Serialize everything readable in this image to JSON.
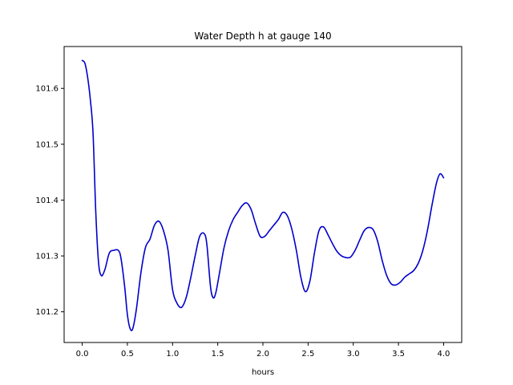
{
  "chart_data": {
    "type": "line",
    "title": "Water Depth h at gauge 140",
    "xlabel": "hours",
    "ylabel": "",
    "xlim": [
      -0.2,
      4.2
    ],
    "ylim": [
      101.145,
      101.675
    ],
    "xticks": [
      0.0,
      0.5,
      1.0,
      1.5,
      2.0,
      2.5,
      3.0,
      3.5,
      4.0
    ],
    "xtick_labels": [
      "0.0",
      "0.5",
      "1.0",
      "1.5",
      "2.0",
      "2.5",
      "3.0",
      "3.5",
      "4.0"
    ],
    "yticks": [
      101.2,
      101.3,
      101.4,
      101.5,
      101.6
    ],
    "ytick_labels": [
      "101.2",
      "101.3",
      "101.4",
      "101.5",
      "101.6"
    ],
    "grid": false,
    "series": [
      {
        "color": "#0000cc",
        "x": [
          0.0,
          0.03,
          0.06,
          0.09,
          0.12,
          0.15,
          0.18,
          0.21,
          0.25,
          0.3,
          0.35,
          0.4,
          0.43,
          0.47,
          0.5,
          0.53,
          0.56,
          0.6,
          0.65,
          0.7,
          0.75,
          0.8,
          0.85,
          0.9,
          0.95,
          1.0,
          1.05,
          1.1,
          1.15,
          1.2,
          1.25,
          1.3,
          1.35,
          1.38,
          1.42,
          1.45,
          1.48,
          1.52,
          1.57,
          1.62,
          1.67,
          1.72,
          1.77,
          1.82,
          1.87,
          1.92,
          1.97,
          2.02,
          2.07,
          2.12,
          2.17,
          2.22,
          2.27,
          2.32,
          2.37,
          2.42,
          2.47,
          2.52,
          2.57,
          2.62,
          2.67,
          2.72,
          2.77,
          2.82,
          2.87,
          2.92,
          2.97,
          3.02,
          3.07,
          3.12,
          3.17,
          3.22,
          3.27,
          3.32,
          3.37,
          3.42,
          3.47,
          3.52,
          3.57,
          3.62,
          3.67,
          3.72,
          3.77,
          3.82,
          3.87,
          3.92,
          3.96,
          4.0
        ],
        "y": [
          101.65,
          101.645,
          101.62,
          101.58,
          101.52,
          101.38,
          101.29,
          101.265,
          101.275,
          101.305,
          101.31,
          101.31,
          101.295,
          101.245,
          101.195,
          101.17,
          101.17,
          101.205,
          101.27,
          101.315,
          101.33,
          101.355,
          101.362,
          101.345,
          101.31,
          101.24,
          101.215,
          101.208,
          101.225,
          101.26,
          101.3,
          101.335,
          101.34,
          101.32,
          101.245,
          101.225,
          101.235,
          101.27,
          101.315,
          101.345,
          101.365,
          101.378,
          101.39,
          101.395,
          101.383,
          101.357,
          101.335,
          101.335,
          101.345,
          101.355,
          101.365,
          101.378,
          101.372,
          101.348,
          101.31,
          101.262,
          101.236,
          101.255,
          101.305,
          101.345,
          101.352,
          101.338,
          101.322,
          101.308,
          101.3,
          101.297,
          101.298,
          101.31,
          101.328,
          101.345,
          101.351,
          101.347,
          101.326,
          101.292,
          101.265,
          101.25,
          101.248,
          101.253,
          101.262,
          101.268,
          101.274,
          101.287,
          101.31,
          101.345,
          101.39,
          101.43,
          101.447,
          101.44
        ]
      }
    ]
  }
}
